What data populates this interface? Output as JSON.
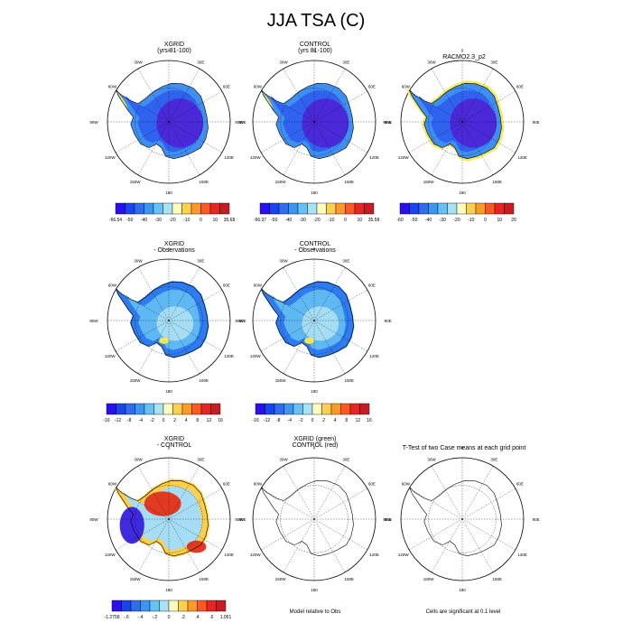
{
  "title": "JJA TSA (C)",
  "panels": [
    {
      "id": "p1",
      "title1": "XGRID",
      "title2": "(yrs 81-100)",
      "fill": "full"
    },
    {
      "id": "p2",
      "title1": "CONTROL",
      "title2": "(yrs 81-100)",
      "fill": "full"
    },
    {
      "id": "p3",
      "title1": "RACMO2.3_p2",
      "title2": "",
      "fill": "racmo"
    },
    {
      "id": "p4",
      "title1": "XGRID",
      "title2": "- Observations",
      "fill": "diff"
    },
    {
      "id": "p5",
      "title1": "CONTROL",
      "title2": "- Observations",
      "fill": "diff"
    },
    {
      "id": "p6",
      "title1": "XGRID",
      "title2": "- CONTROL",
      "fill": "xc"
    },
    {
      "id": "p7",
      "title1": "XGRID (green)",
      "title2": "CONTROL (red)",
      "fill": "none"
    },
    {
      "id": "p8",
      "title1": "T-Test of two Case means at each grid point",
      "title2": "",
      "fill": "none"
    }
  ],
  "map_labels": {
    "top": "0",
    "bottom": "180",
    "left": "90W",
    "right": "90E",
    "ul1": "30W",
    "ul2": "60W",
    "ur1": "30E",
    "ur2": "60E",
    "ll1": "120W",
    "ll2": "150W",
    "lr1": "120E",
    "lr2": "150E"
  },
  "colorbars": [
    {
      "id": "cb1",
      "colors": [
        "#2a10ee",
        "#1a44ee",
        "#2f6cf0",
        "#3b96f2",
        "#66c2f4",
        "#a8e2f5",
        "#fffcc0",
        "#ffd050",
        "#ff9a28",
        "#ff5820",
        "#e62624",
        "#c41e24"
      ],
      "labels": [
        "-66.54",
        "-50",
        "-40",
        "-30",
        "-20",
        "-10",
        "0",
        "10",
        "35.68"
      ]
    },
    {
      "id": "cb2",
      "colors": [
        "#2a10ee",
        "#1a44ee",
        "#2f6cf0",
        "#3b96f2",
        "#66c2f4",
        "#a8e2f5",
        "#fffcc0",
        "#ffd050",
        "#ff9a28",
        "#ff5820",
        "#e62624",
        "#c41e24"
      ],
      "labels": [
        "-66.37",
        "-50",
        "-40",
        "-30",
        "-20",
        "-10",
        "0",
        "10",
        "35.58"
      ]
    },
    {
      "id": "cb3",
      "colors": [
        "#2a10ee",
        "#1a44ee",
        "#2f6cf0",
        "#3b96f2",
        "#66c2f4",
        "#a8e2f5",
        "#fffcc0",
        "#ffd050",
        "#ff9a28",
        "#ff5820",
        "#e62624",
        "#c41e24"
      ],
      "labels": [
        "-60",
        "-50",
        "-40",
        "-30",
        "-20",
        "-10",
        "0",
        "10",
        "20"
      ]
    },
    {
      "id": "cb4",
      "colors": [
        "#2a10ee",
        "#1a44ee",
        "#2f6cf0",
        "#3b96f2",
        "#66c2f4",
        "#a8e2f5",
        "#fffcc0",
        "#ffd050",
        "#ff9a28",
        "#ff5820",
        "#e62624",
        "#c41e24"
      ],
      "labels": [
        "-16",
        "-12",
        "-8",
        "-4",
        "-2",
        "0",
        "2",
        "4",
        "8",
        "12",
        "16"
      ]
    },
    {
      "id": "cb5",
      "colors": [
        "#2a10ee",
        "#1a44ee",
        "#2f6cf0",
        "#3b96f2",
        "#66c2f4",
        "#a8e2f5",
        "#fffcc0",
        "#ffd050",
        "#ff9a28",
        "#ff5820",
        "#e62624",
        "#c41e24"
      ],
      "labels": [
        "-16",
        "-12",
        "-8",
        "-4",
        "-2",
        "0",
        "2",
        "4",
        "8",
        "12",
        "16"
      ]
    },
    {
      "id": "cb6",
      "colors": [
        "#2a10ee",
        "#1a44ee",
        "#2f6cf0",
        "#3b96f2",
        "#66c2f4",
        "#a8e2f5",
        "#fffcc0",
        "#ffd050",
        "#ff9a28",
        "#ff5820",
        "#e62624",
        "#c41e24"
      ],
      "labels": [
        "-1.2758",
        "-.6",
        "-.4",
        "-.2",
        "0",
        ".2",
        ".4",
        ".6",
        "1.051"
      ]
    }
  ],
  "footers": {
    "model_relative": "Model relative to Obs",
    "significance": "Cells are significant at 0.1 level"
  },
  "chart_data": {
    "type": "heatmap",
    "title": "JJA TSA (C)",
    "projection": "south polar stereographic",
    "region": "Antarctica",
    "variable": "TSA (C)",
    "season": "JJA",
    "panels": [
      {
        "name": "XGRID (yrs 81-100)",
        "colorbar_min": -66.54,
        "colorbar_max": 35.68,
        "levels": [
          -50,
          -40,
          -30,
          -20,
          -10,
          0,
          10
        ]
      },
      {
        "name": "CONTROL (yrs 81-100)",
        "colorbar_min": -66.37,
        "colorbar_max": 35.58,
        "levels": [
          -50,
          -40,
          -30,
          -20,
          -10,
          0,
          10
        ]
      },
      {
        "name": "RACMO2.3_p2",
        "levels": [
          -60,
          -50,
          -40,
          -30,
          -20,
          -10,
          0,
          10,
          20
        ]
      },
      {
        "name": "XGRID - Observations",
        "levels": [
          -16,
          -12,
          -8,
          -4,
          -2,
          0,
          2,
          4,
          8,
          12,
          16
        ]
      },
      {
        "name": "CONTROL - Observations",
        "levels": [
          -16,
          -12,
          -8,
          -4,
          -2,
          0,
          2,
          4,
          8,
          12,
          16
        ]
      },
      {
        "name": "XGRID - CONTROL",
        "colorbar_min": -1.2758,
        "colorbar_max": 1.051,
        "levels": [
          -0.6,
          -0.4,
          -0.2,
          0,
          0.2,
          0.4,
          0.6
        ]
      },
      {
        "name": "XGRID (green) CONTROL (red)"
      },
      {
        "name": "T-Test of two Case means at each grid point"
      }
    ]
  }
}
